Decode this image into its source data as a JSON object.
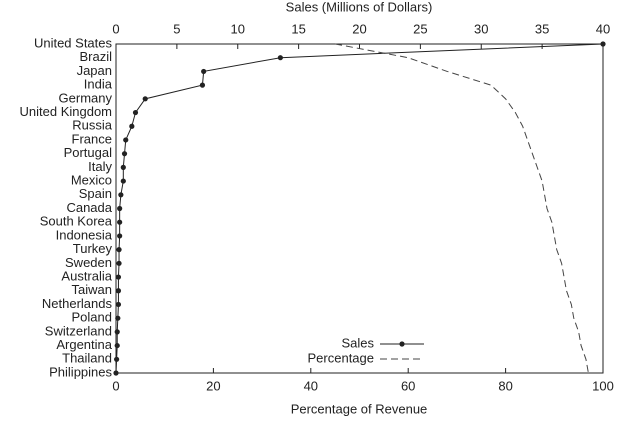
{
  "chart_data": {
    "type": "line",
    "orientation": "horizontal",
    "categories": [
      "United States",
      "Brazil",
      "Japan",
      "India",
      "Germany",
      "United Kingdom",
      "Russia",
      "France",
      "Portugal",
      "Italy",
      "Mexico",
      "Spain",
      "Canada",
      "South Korea",
      "Indonesia",
      "Turkey",
      "Sweden",
      "Australia",
      "Taiwan",
      "Netherlands",
      "Poland",
      "Switzerland",
      "Argentina",
      "Thailand",
      "Philippines"
    ],
    "xlabel": "Percentage of Revenue",
    "x2label": "Sales (Millions of Dollars)",
    "xlim": [
      0,
      100
    ],
    "xticks": [
      0,
      20,
      40,
      60,
      80,
      100
    ],
    "x2lim": [
      0,
      40
    ],
    "x2ticks": [
      0,
      5,
      10,
      15,
      20,
      25,
      30,
      35,
      40
    ],
    "grid": false,
    "legend": "lower right",
    "series": [
      {
        "name": "Sales",
        "color": "#222222",
        "axis": "x2",
        "marker": true,
        "dashed": false,
        "values": [
          40,
          13.5,
          7.2,
          7.1,
          2.4,
          1.6,
          1.3,
          0.8,
          0.7,
          0.6,
          0.6,
          0.4,
          0.3,
          0.3,
          0.3,
          0.25,
          0.25,
          0.2,
          0.2,
          0.2,
          0.15,
          0.1,
          0.1,
          0.05,
          0
        ]
      },
      {
        "name": "Percentage",
        "color": "#444444",
        "axis": "x",
        "marker": false,
        "dashed": true,
        "values": [
          45,
          60,
          68,
          77,
          80,
          82,
          83.5,
          84.5,
          85.5,
          86.5,
          87.5,
          88,
          88.5,
          89.5,
          90,
          90.5,
          91.5,
          92,
          92.5,
          93.5,
          94,
          95,
          95.5,
          96.5,
          97
        ]
      }
    ]
  }
}
